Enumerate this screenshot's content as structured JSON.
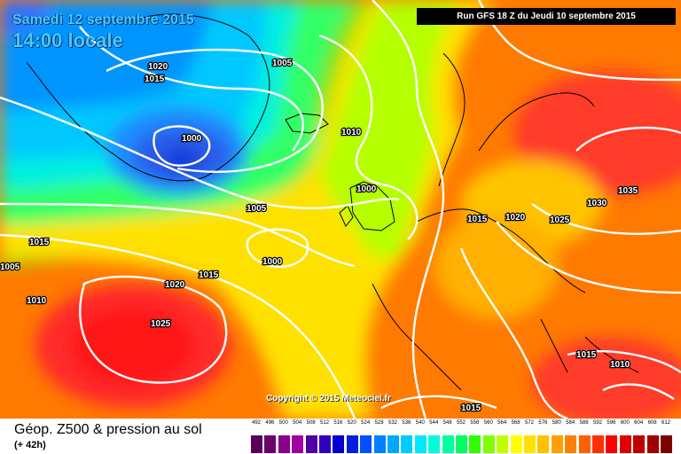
{
  "header": {
    "date_text": "Samedi 12 septembre 2015",
    "time_text": "14:00 locale",
    "run_text": "Run GFS 18 Z du Jeudi 10 septembre 2015"
  },
  "copyright": "Copyright © 2015 Meteociel.fr",
  "footer": {
    "title": "Géop. Z500 & pression au sol",
    "lead": "(+ 42h)"
  },
  "isobar_labels": [
    "1020",
    "1015",
    "1005",
    "1000",
    "1010",
    "1005",
    "1000",
    "1000",
    "1015",
    "1020",
    "1025",
    "1035",
    "1030",
    "1015",
    "1005",
    "1010",
    "1020",
    "1015",
    "1025",
    "1015",
    "1010",
    "1015"
  ],
  "legend": {
    "values": [
      "492",
      "496",
      "500",
      "504",
      "508",
      "512",
      "516",
      "520",
      "524",
      "528",
      "532",
      "536",
      "540",
      "544",
      "548",
      "552",
      "556",
      "560",
      "564",
      "568",
      "572",
      "576",
      "580",
      "584",
      "588",
      "592",
      "596",
      "600",
      "604",
      "608",
      "612"
    ],
    "colors": [
      "#5a005a",
      "#6c006c",
      "#8a008a",
      "#a000a0",
      "#5000a0",
      "#3000c0",
      "#0000d0",
      "#0020e0",
      "#0050ff",
      "#0080ff",
      "#00a8ff",
      "#00ccff",
      "#00e8ff",
      "#00ffd8",
      "#00ffa0",
      "#00ff60",
      "#30ff00",
      "#80ff00",
      "#c0ff00",
      "#ffff00",
      "#ffe000",
      "#ffc000",
      "#ffa000",
      "#ff8000",
      "#ff6000",
      "#ff3000",
      "#ff0000",
      "#e00000",
      "#c00000",
      "#a00000",
      "#800000"
    ]
  },
  "colors": {
    "z500_low": "#0a34d8",
    "z500_high": "#ff2a2a"
  }
}
